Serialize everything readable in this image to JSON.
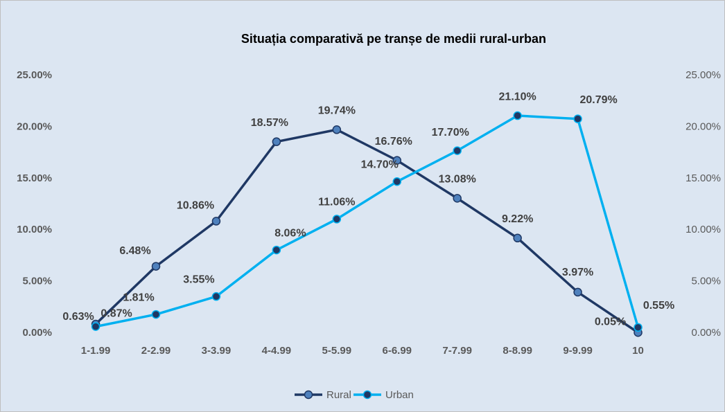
{
  "chart_data": {
    "type": "line",
    "title": "Situația comparativă pe tranșe de medii rural-urban",
    "categories": [
      "1-1.99",
      "2-2.99",
      "3-3.99",
      "4-4.99",
      "5-5.99",
      "6-6.99",
      "7-7.99",
      "8-8.99",
      "9-9.99",
      "10"
    ],
    "series": [
      {
        "name": "Rural",
        "color": "#1f3864",
        "marker_color": "#4f81bd",
        "values": [
          0.87,
          6.48,
          10.86,
          18.57,
          19.74,
          16.76,
          13.08,
          9.22,
          3.97,
          0.05
        ],
        "value_labels": [
          "0.87%",
          "6.48%",
          "10.86%",
          "18.57%",
          "19.74%",
          "16.76%",
          "13.08%",
          "9.22%",
          "3.97%",
          "0.05%"
        ]
      },
      {
        "name": "Urban",
        "color": "#00b0f0",
        "marker_color": "#1f3864",
        "axis": "y2",
        "values": [
          0.63,
          1.81,
          3.55,
          8.06,
          11.06,
          14.7,
          17.7,
          21.1,
          20.79,
          0.55
        ],
        "value_labels": [
          "0.63%",
          "1.81%",
          "3.55%",
          "8.06%",
          "11.06%",
          "14.70%",
          "17.70%",
          "21.10%",
          "20.79%",
          "0.55%"
        ]
      }
    ],
    "ylim": [
      0,
      25
    ],
    "yticks": [
      {
        "value": 0,
        "label": "0.00%"
      },
      {
        "value": 5,
        "label": "5.00%"
      },
      {
        "value": 10,
        "label": "10.00%"
      },
      {
        "value": 15,
        "label": "15.00%"
      },
      {
        "value": 20,
        "label": "20.00%"
      },
      {
        "value": 25,
        "label": "25.00%"
      }
    ],
    "y2lim": [
      0,
      25
    ],
    "y2ticks": [
      {
        "value": 0,
        "label": "0.00%"
      },
      {
        "value": 5,
        "label": "5.00%"
      },
      {
        "value": 10,
        "label": "10.00%"
      },
      {
        "value": 15,
        "label": "15.00%"
      },
      {
        "value": 20,
        "label": "20.00%"
      },
      {
        "value": 25,
        "label": "25.00%"
      }
    ],
    "grid": false,
    "legend": "bottom"
  }
}
